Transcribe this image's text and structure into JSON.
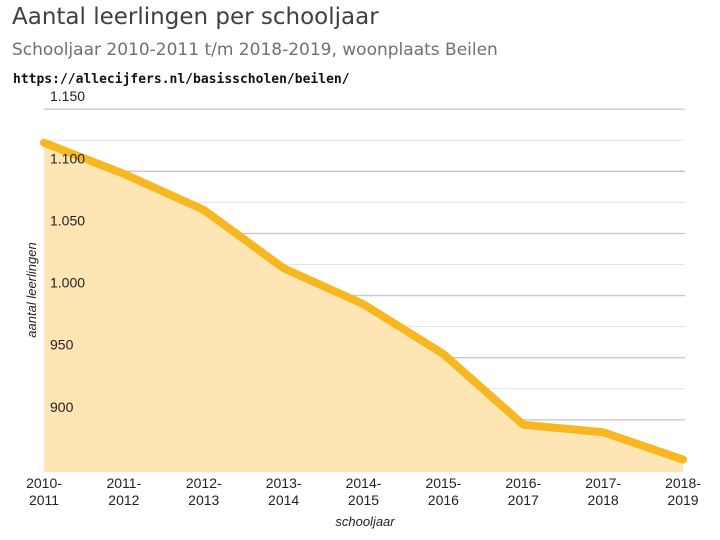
{
  "header": {
    "title": "Aantal leerlingen per schooljaar",
    "subtitle": "Schooljaar 2010-2011 t/m 2018-2019, woonplaats Beilen",
    "source_url": "https://allecijfers.nl/basisscholen/beilen/"
  },
  "chart_data": {
    "type": "area",
    "title": "Aantal leerlingen per schooljaar",
    "subtitle": "Schooljaar 2010-2011 t/m 2018-2019, woonplaats Beilen",
    "xlabel": "schooljaar",
    "ylabel": "aantal leerlingen",
    "categories": [
      [
        "2010-",
        "2011"
      ],
      [
        "2011-",
        "2012"
      ],
      [
        "2012-",
        "2013"
      ],
      [
        "2013-",
        "2014"
      ],
      [
        "2014-",
        "2015"
      ],
      [
        "2015-",
        "2016"
      ],
      [
        "2016-",
        "2017"
      ],
      [
        "2017-",
        "2018"
      ],
      [
        "2018-",
        "2019"
      ]
    ],
    "values": [
      1123,
      1098,
      1069,
      1022,
      993,
      953,
      896,
      890,
      868
    ],
    "yticks": [
      900,
      950,
      1000,
      1050,
      1100,
      1150
    ],
    "ytick_labels": [
      "900",
      "950",
      "1.000",
      "1.050",
      "1.100",
      "1.150"
    ],
    "ylim": [
      858,
      1155
    ],
    "grid": true,
    "line_color": "#f8b720",
    "fill_color": "#fde6b3"
  }
}
